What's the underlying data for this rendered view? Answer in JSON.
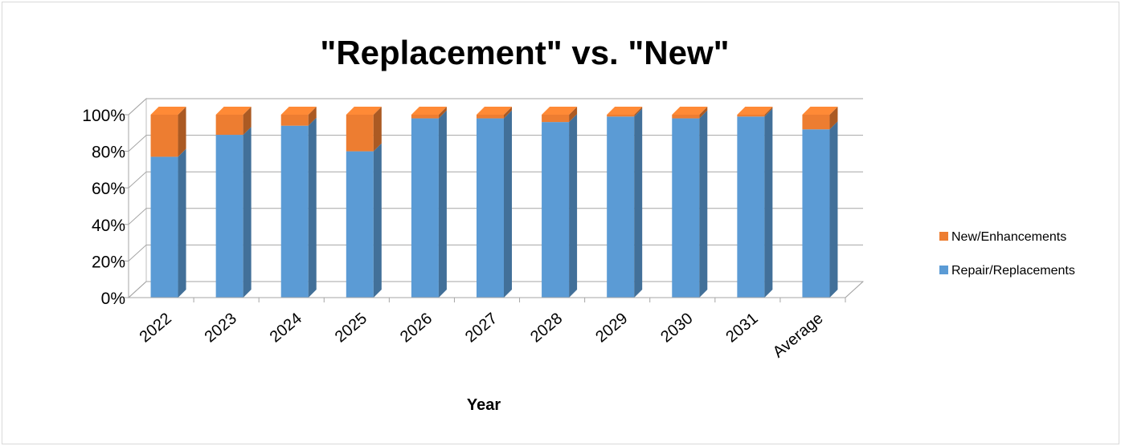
{
  "chart_data": {
    "type": "bar",
    "stacked": true,
    "percent_stacked": true,
    "three_d": true,
    "title": "\"Replacement\" vs. \"New\"",
    "xlabel": "Year",
    "ylabel": "",
    "categories": [
      "2022",
      "2023",
      "2024",
      "2025",
      "2026",
      "2027",
      "2028",
      "2029",
      "2030",
      "2031",
      "Average"
    ],
    "series": [
      {
        "name": "Repair/Replacements",
        "color": "#5b9bd5",
        "values": [
          77,
          89,
          94,
          80,
          98,
          98,
          96,
          99,
          98,
          99,
          92
        ]
      },
      {
        "name": "New/Enhancements",
        "color": "#ed7d31",
        "values": [
          23,
          11,
          6,
          20,
          2,
          2,
          4,
          1,
          2,
          1,
          8
        ]
      }
    ],
    "y_ticks": [
      "0%",
      "20%",
      "40%",
      "60%",
      "80%",
      "100%"
    ],
    "ylim": [
      0,
      100
    ],
    "grid": true,
    "legend_position": "right"
  }
}
